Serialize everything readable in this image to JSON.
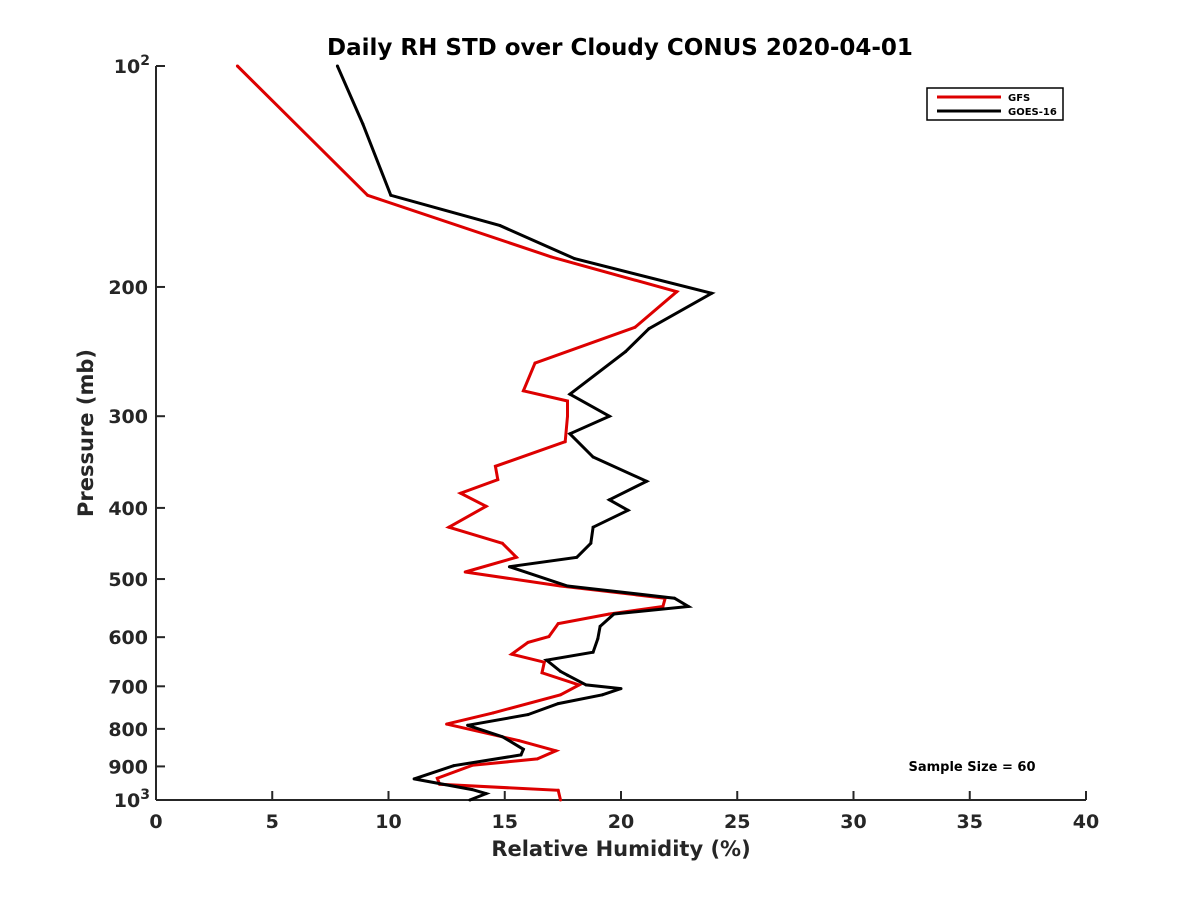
{
  "chart_data": {
    "type": "line",
    "title": "Daily RH STD over Cloudy CONUS 2020-04-01",
    "xlabel": "Relative Humidity (%)",
    "ylabel": "Pressure (mb)",
    "xlim": [
      0,
      40
    ],
    "ylim": [
      100,
      1000
    ],
    "y_scale": "log",
    "y_reversed": true,
    "x_ticks": [
      0,
      5,
      10,
      15,
      20,
      25,
      30,
      35,
      40
    ],
    "x_tick_labels": [
      "0",
      "5",
      "10",
      "15",
      "20",
      "25",
      "30",
      "35",
      "40"
    ],
    "y_ticks": [
      100,
      200,
      300,
      400,
      500,
      600,
      700,
      800,
      900,
      1000
    ],
    "y_tick_labels": [
      {
        "base": "10",
        "exp": "2"
      },
      {
        "base": "200",
        "exp": ""
      },
      {
        "base": "300",
        "exp": ""
      },
      {
        "base": "400",
        "exp": ""
      },
      {
        "base": "500",
        "exp": ""
      },
      {
        "base": "600",
        "exp": ""
      },
      {
        "base": "700",
        "exp": ""
      },
      {
        "base": "800",
        "exp": ""
      },
      {
        "base": "900",
        "exp": ""
      },
      {
        "base": "10",
        "exp": "3"
      }
    ],
    "grid": false,
    "legend_position": "top-right",
    "annotation": "Sample Size = 60",
    "series": [
      {
        "name": "GFS",
        "color": "#dd0000",
        "points": [
          [
            3.5,
            100
          ],
          [
            9.1,
            150
          ],
          [
            17.0,
            182
          ],
          [
            22.4,
            203
          ],
          [
            20.6,
            227
          ],
          [
            16.3,
            254
          ],
          [
            15.8,
            277
          ],
          [
            17.7,
            286
          ],
          [
            17.7,
            300
          ],
          [
            17.6,
            325
          ],
          [
            14.6,
            351
          ],
          [
            14.7,
            366
          ],
          [
            13.1,
            382
          ],
          [
            14.2,
            398
          ],
          [
            12.6,
            425
          ],
          [
            14.9,
            447
          ],
          [
            15.5,
            467
          ],
          [
            13.3,
            489
          ],
          [
            17.4,
            511
          ],
          [
            21.9,
            531
          ],
          [
            21.8,
            545
          ],
          [
            19.5,
            558
          ],
          [
            17.3,
            575
          ],
          [
            16.9,
            599
          ],
          [
            16.0,
            610
          ],
          [
            15.3,
            633
          ],
          [
            16.7,
            649
          ],
          [
            16.6,
            671
          ],
          [
            18.2,
            697
          ],
          [
            17.4,
            719
          ],
          [
            14.5,
            761
          ],
          [
            12.5,
            788
          ],
          [
            15.6,
            830
          ],
          [
            17.2,
            857
          ],
          [
            16.4,
            879
          ],
          [
            13.6,
            897
          ],
          [
            12.1,
            934
          ],
          [
            12.2,
            952
          ],
          [
            17.3,
            970
          ],
          [
            17.4,
            1000
          ]
        ]
      },
      {
        "name": "GOES-16",
        "color": "#000000",
        "points": [
          [
            7.8,
            100
          ],
          [
            8.9,
            120
          ],
          [
            10.1,
            150
          ],
          [
            14.8,
            165
          ],
          [
            18.0,
            183
          ],
          [
            23.9,
            204
          ],
          [
            21.2,
            228
          ],
          [
            20.2,
            245
          ],
          [
            17.8,
            280
          ],
          [
            19.5,
            300
          ],
          [
            17.8,
            317
          ],
          [
            18.8,
            341
          ],
          [
            21.1,
            368
          ],
          [
            19.5,
            390
          ],
          [
            20.3,
            403
          ],
          [
            18.8,
            425
          ],
          [
            18.7,
            447
          ],
          [
            18.1,
            467
          ],
          [
            15.2,
            481
          ],
          [
            17.7,
            511
          ],
          [
            22.3,
            531
          ],
          [
            22.9,
            545
          ],
          [
            19.7,
            558
          ],
          [
            19.1,
            580
          ],
          [
            19.0,
            603
          ],
          [
            18.8,
            629
          ],
          [
            16.8,
            645
          ],
          [
            17.4,
            668
          ],
          [
            17.7,
            676
          ],
          [
            18.5,
            697
          ],
          [
            20.0,
            705
          ],
          [
            19.2,
            719
          ],
          [
            17.3,
            739
          ],
          [
            16.0,
            765
          ],
          [
            13.4,
            791
          ],
          [
            14.9,
            820
          ],
          [
            15.8,
            853
          ],
          [
            15.7,
            868
          ],
          [
            12.8,
            898
          ],
          [
            11.1,
            936
          ],
          [
            13.6,
            968
          ],
          [
            14.2,
            980
          ],
          [
            13.5,
            1000
          ]
        ]
      }
    ]
  }
}
